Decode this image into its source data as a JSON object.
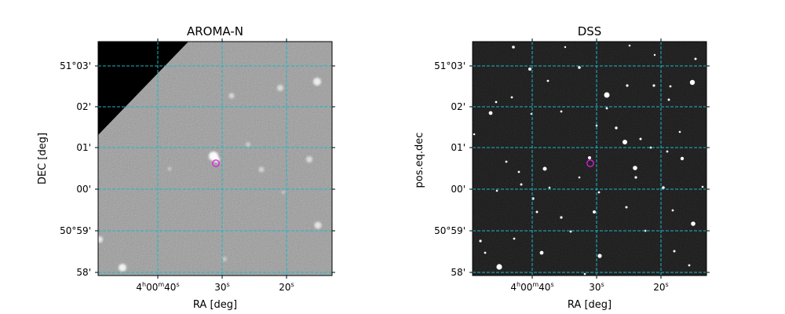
{
  "panels": [
    {
      "id": "left",
      "title": "AROMA-N",
      "xlabel": "RA [deg]",
      "ylabel": "DEC [deg]",
      "xticks": [
        {
          "h": "4",
          "m": "00",
          "s": "40",
          "full": true
        },
        {
          "s": "30",
          "full": false
        },
        {
          "s": "20",
          "full": false
        }
      ],
      "yticks": [
        "51°03'",
        "02'",
        "01'",
        "00'",
        "50°59'",
        "58'"
      ],
      "background": "#9a9a9a",
      "mask": "black-corner-top-left"
    },
    {
      "id": "right",
      "title": "DSS",
      "xlabel": "RA [deg]",
      "ylabel": "pos.eq.dec",
      "xticks": [
        {
          "h": "4",
          "m": "00",
          "s": "40",
          "full": true
        },
        {
          "s": "30",
          "full": false
        },
        {
          "s": "20",
          "full": false
        }
      ],
      "yticks": [
        "51°03'",
        "02'",
        "01'",
        "00'",
        "50°59'",
        "58'"
      ],
      "background": "#141414"
    }
  ],
  "colors": {
    "grid": "#18b8c8",
    "marker": "#e020e0"
  }
}
